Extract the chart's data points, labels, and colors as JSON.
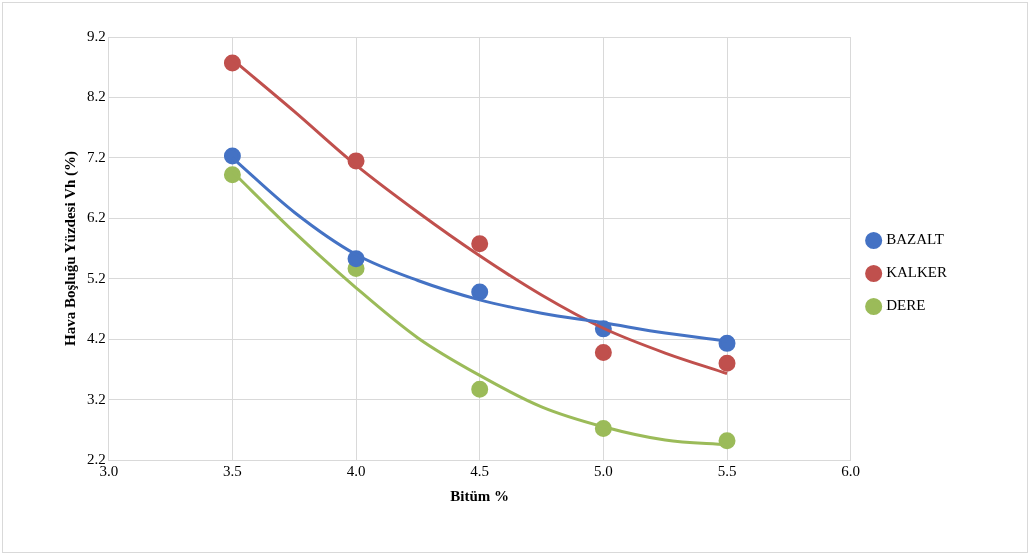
{
  "chart_data": {
    "type": "scatter",
    "xlabel": "Bitüm %",
    "ylabel": "Hava Boşluğu Yüzdesi Vh (%)",
    "xlim": [
      3,
      6
    ],
    "xticks": [
      {
        "value": 3,
        "label": "3.0"
      },
      {
        "value": 3.5,
        "label": "3.5"
      },
      {
        "value": 4,
        "label": "4.0"
      },
      {
        "value": 4.5,
        "label": "4.5"
      },
      {
        "value": 5,
        "label": "5.0"
      },
      {
        "value": 5.5,
        "label": "5.5"
      },
      {
        "value": 6,
        "label": "6.0"
      }
    ],
    "ylim": [
      2.2,
      9.2
    ],
    "yticks": [
      2.2,
      3.2,
      4.2,
      5.2,
      6.2,
      7.2,
      8.2,
      9.2
    ],
    "grid": true,
    "legend": "right",
    "marker": "circle",
    "x": [
      3.5,
      4,
      4.5,
      5,
      5.5
    ],
    "series": [
      {
        "name": "BAZALT",
        "color": "#4472c4",
        "values": [
          7.23,
          5.53,
          4.98,
          4.37,
          4.13
        ]
      },
      {
        "name": "KALKER",
        "color": "#c0504d",
        "values": [
          8.77,
          7.15,
          5.78,
          3.98,
          3.8
        ]
      },
      {
        "name": "DERE",
        "color": "#9bbb59",
        "values": [
          6.92,
          5.37,
          3.37,
          2.72,
          2.52
        ]
      },
      {
        "type": "line",
        "marker": "none",
        "color": "#4472c4",
        "x": [
          3.5,
          3.75,
          4,
          4.25,
          4.5,
          4.75,
          5,
          5.25,
          5.5
        ],
        "values": [
          7.2,
          6.3,
          5.6,
          5.17,
          4.85,
          4.63,
          4.47,
          4.3,
          4.17
        ]
      },
      {
        "type": "line",
        "marker": "none",
        "color": "#c0504d",
        "x": [
          3.5,
          3.75,
          4,
          4.25,
          4.5,
          4.75,
          5,
          5.25,
          5.5
        ],
        "values": [
          8.83,
          7.97,
          7.08,
          6.3,
          5.58,
          4.93,
          4.38,
          3.97,
          3.63
        ]
      },
      {
        "type": "line",
        "marker": "none",
        "color": "#9bbb59",
        "x": [
          3.5,
          3.75,
          4,
          4.25,
          4.5,
          4.75,
          5,
          5.25,
          5.5
        ],
        "values": [
          6.97,
          5.97,
          5.05,
          4.22,
          3.6,
          3.08,
          2.75,
          2.53,
          2.45
        ]
      }
    ]
  }
}
